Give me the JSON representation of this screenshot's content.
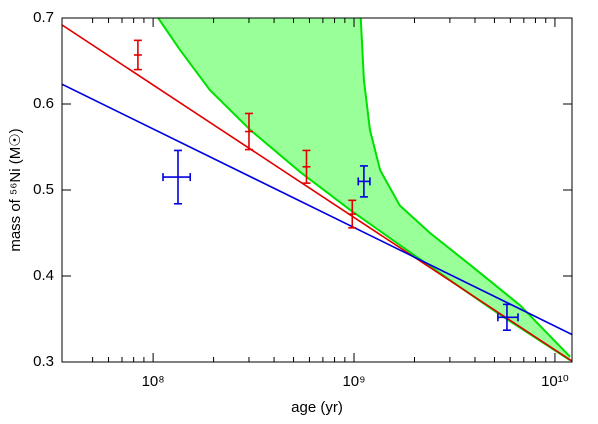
{
  "chart_data": {
    "type": "errorbar",
    "xlabel": "age (yr)",
    "ylabel": "mass of ⁵⁶Ni (M☉)",
    "xscale": "log",
    "xlim": [
      35200000,
      12160000000
    ],
    "ylim": [
      0.3,
      0.7
    ],
    "xticks": [
      {
        "value": 100000000,
        "label": "10⁸"
      },
      {
        "value": 1000000000,
        "label": "10⁹"
      },
      {
        "value": 10000000000,
        "label": "10¹⁰"
      }
    ],
    "xminorticks": [
      50000000,
      60000000,
      70000000,
      80000000,
      90000000,
      200000000,
      300000000,
      400000000,
      500000000,
      600000000,
      700000000,
      800000000,
      900000000,
      2000000000,
      3000000000,
      4000000000,
      5000000000,
      6000000000,
      7000000000,
      8000000000,
      9000000000
    ],
    "yticks": [
      0.3,
      0.4,
      0.5,
      0.6,
      0.7
    ],
    "band": {
      "color": "#99ff99",
      "edge_color": "#00e000",
      "lower": {
        "x": [
          106000000,
          136000000,
          192000000,
          304000000,
          539000000,
          955000000,
          1690000000,
          3010000000,
          5320000000,
          11900000000
        ],
        "values": [
          0.7,
          0.663,
          0.616,
          0.57,
          0.521,
          0.477,
          0.436,
          0.395,
          0.355,
          0.302
        ]
      },
      "upper": {
        "x": [
          1080000000,
          1120000000,
          1200000000,
          1350000000,
          1690000000,
          2390000000,
          3780000000,
          6700000000,
          11900000000
        ],
        "values": [
          0.7,
          0.628,
          0.57,
          0.523,
          0.482,
          0.45,
          0.413,
          0.366,
          0.306
        ]
      }
    },
    "lines": [
      {
        "color": "#e00000",
        "x": [
          35200000,
          12160000000
        ],
        "values": [
          0.692,
          0.301
        ]
      },
      {
        "color": "#0000e0",
        "x": [
          35200000,
          12160000000
        ],
        "values": [
          0.623,
          0.332
        ]
      }
    ],
    "series": [
      {
        "color": "#e00000",
        "x": [
          84000000,
          300000000,
          580000000,
          980000000
        ],
        "values": [
          0.657,
          0.568,
          0.527,
          0.472
        ],
        "yerr": [
          0.017,
          0.021,
          0.019,
          0.016
        ]
      },
      {
        "color": "#0000e0",
        "x": [
          133000000,
          1120000000,
          5770000000
        ],
        "values": [
          0.515,
          0.51,
          0.352
        ],
        "yerr": [
          0.031,
          0.018,
          0.015
        ],
        "xlow": [
          112000000,
          1050000000,
          5200000000
        ],
        "xhigh": [
          153000000,
          1200000000,
          6550000000
        ]
      }
    ]
  }
}
